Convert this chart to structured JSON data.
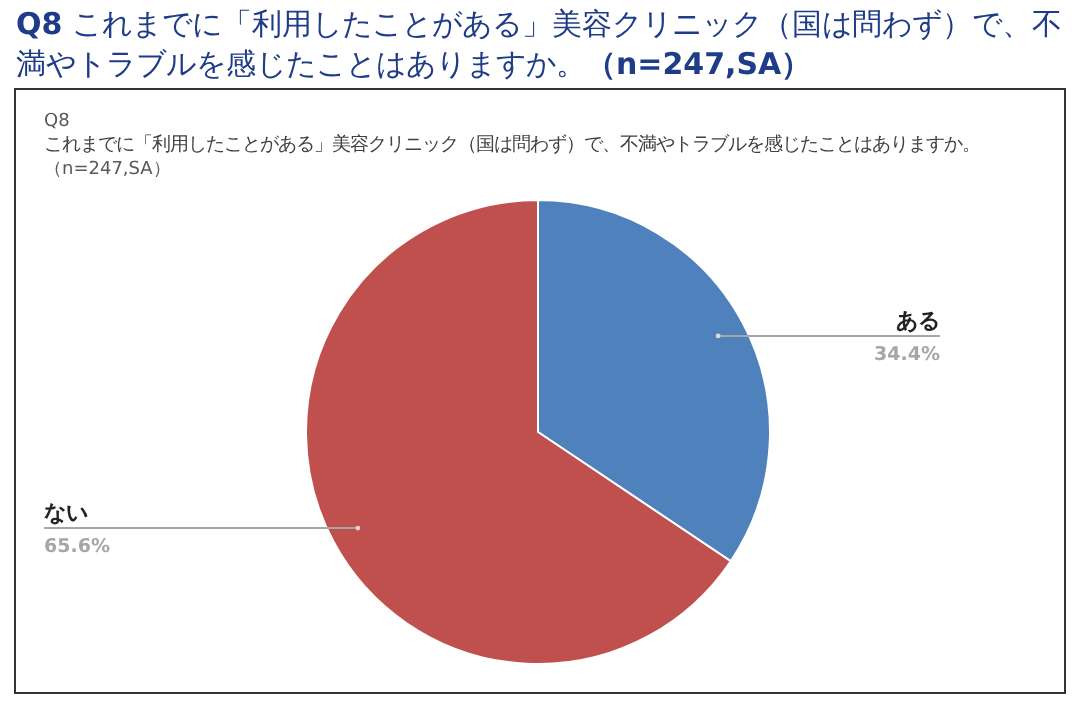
{
  "chart_data": {
    "type": "pie",
    "title": "**Q8** これまでに「利用したことがある」美容クリニック（国は問わず）で、不満やトラブルを感じたことはありますか。**（n=247,SA）**",
    "subtitle": "これまでに「利用したことがある」美容クリニック（国は問わず）で、不満やトラブルを感じたことはありますか。",
    "annotations": [
      "Q8",
      "（n=247,SA）"
    ],
    "categories": [
      "ある",
      "ない"
    ],
    "values": [
      34.4,
      65.6
    ],
    "colors": [
      "#4f81bd",
      "#c0504d"
    ],
    "value_labels": [
      "34.4%",
      "65.6%"
    ]
  }
}
